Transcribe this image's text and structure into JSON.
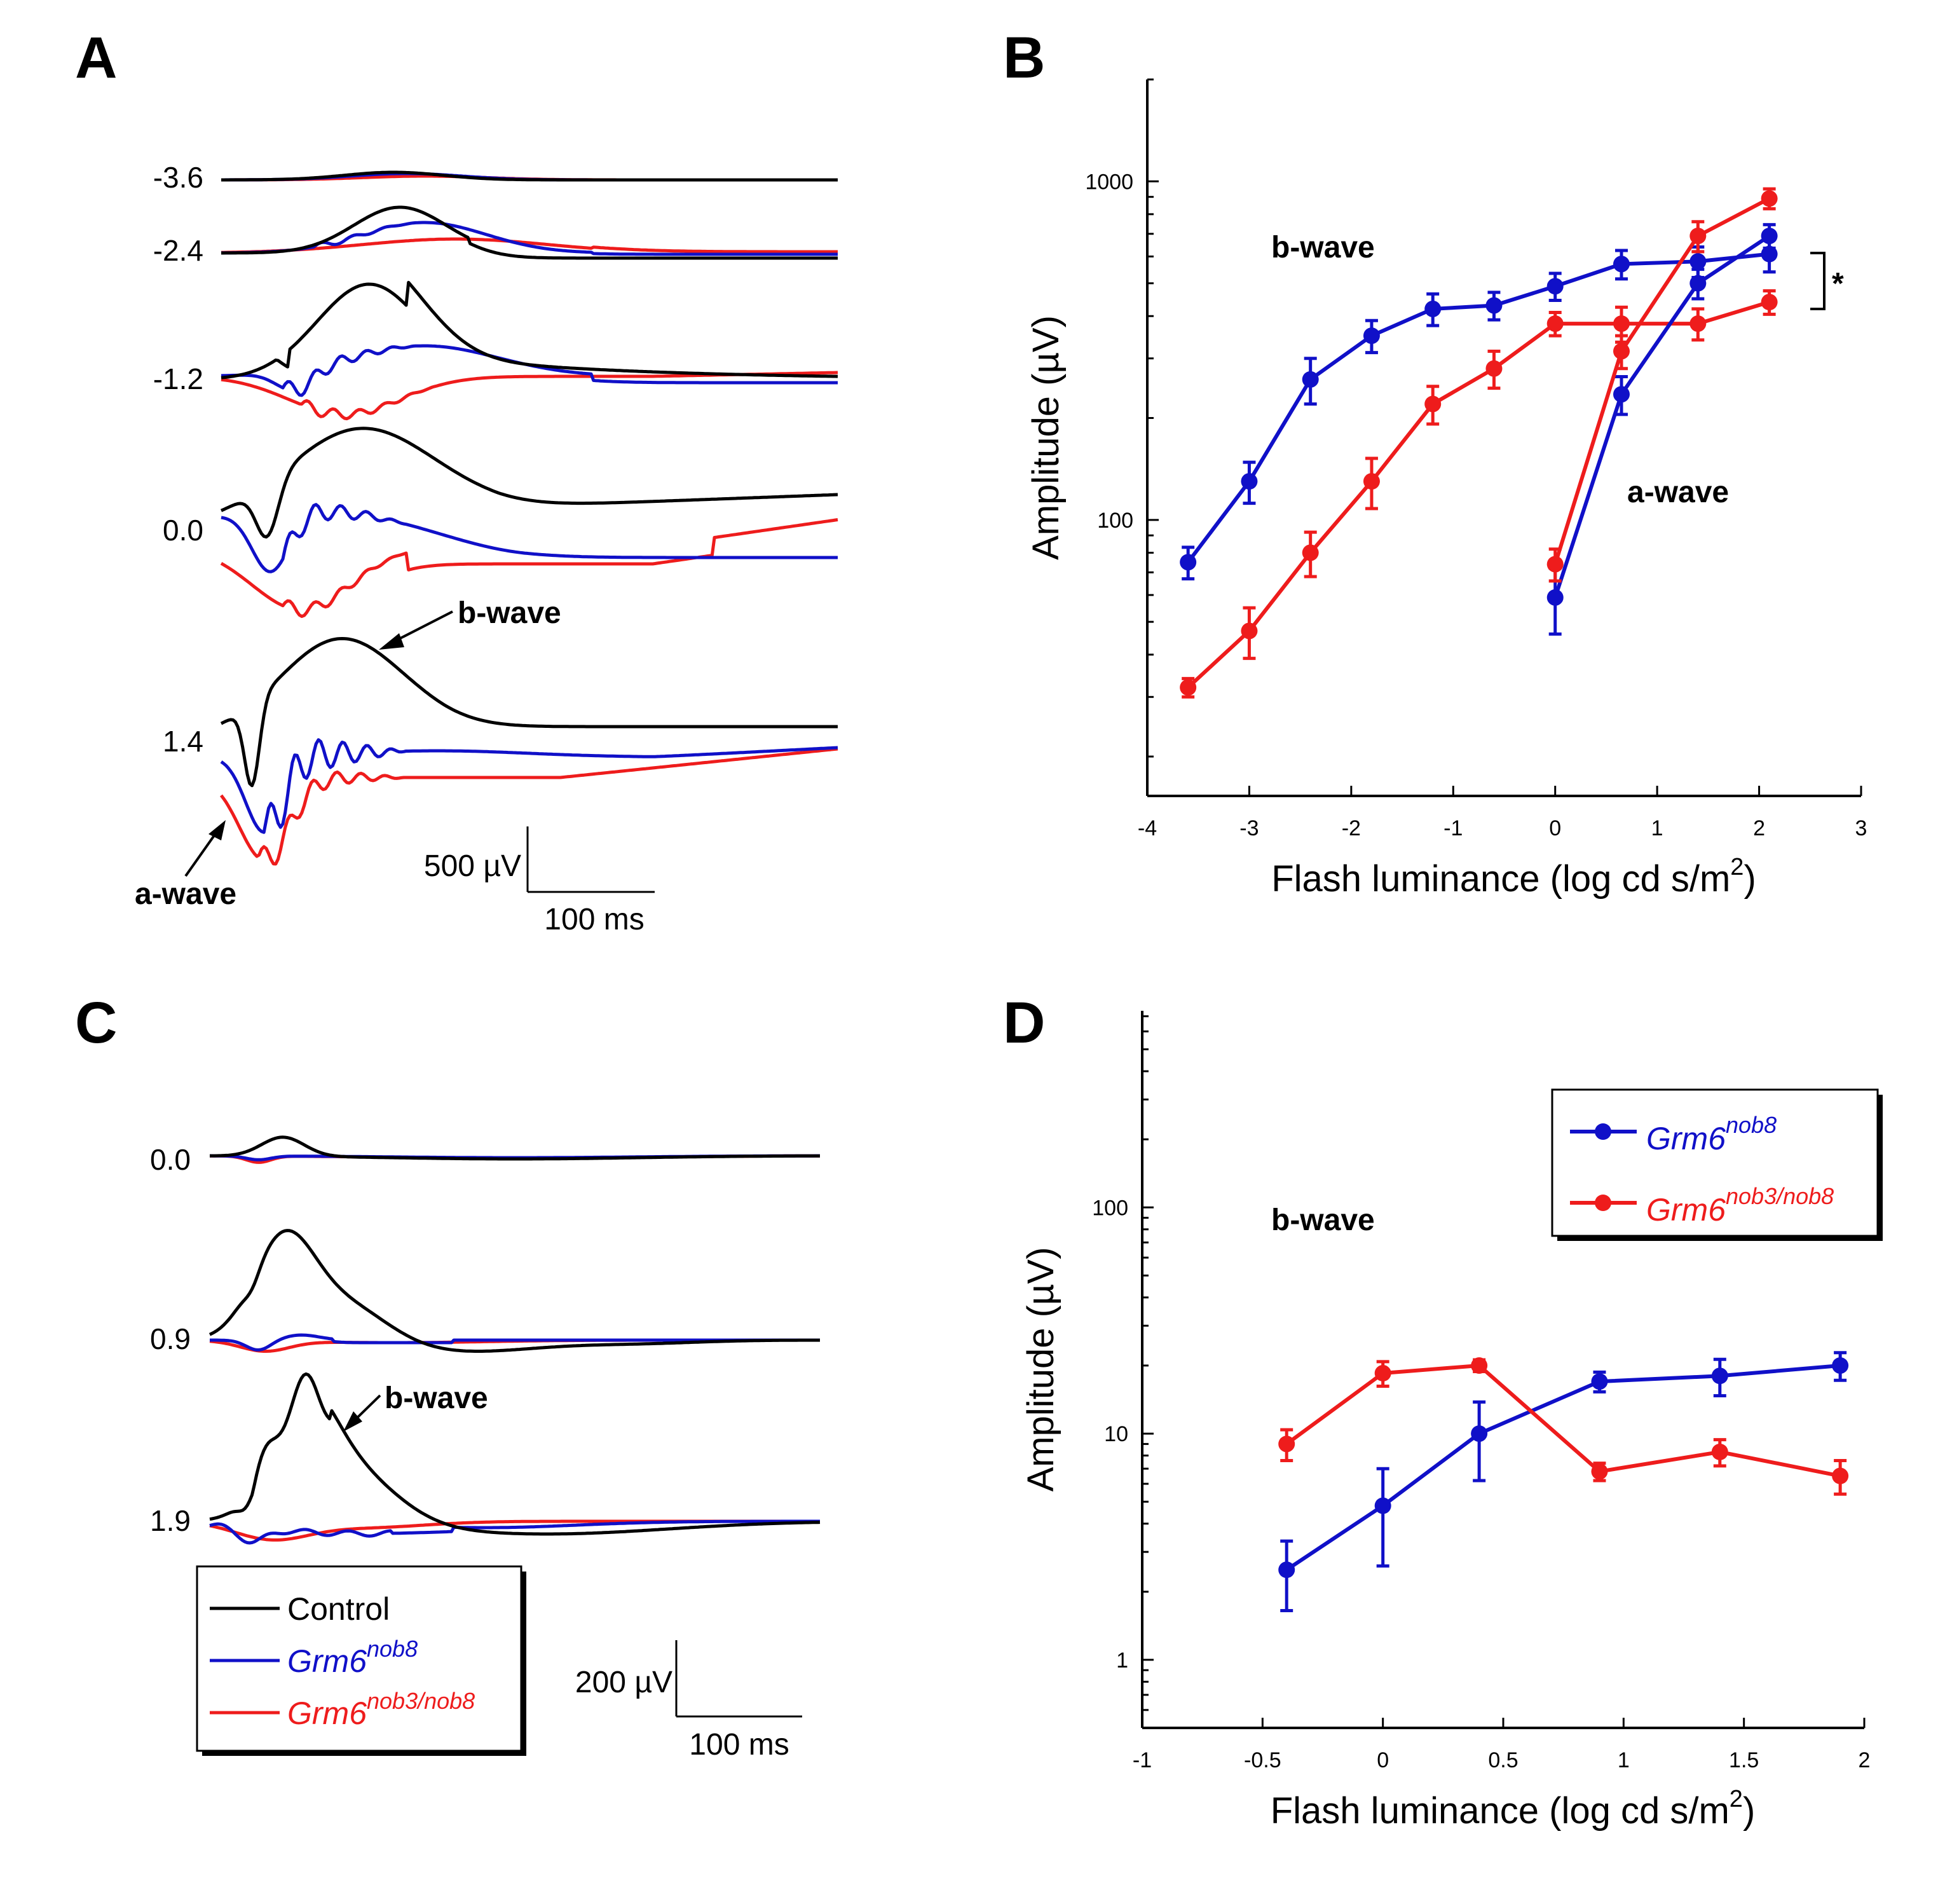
{
  "colors": {
    "control": "#000000",
    "nob8": "#1010c8",
    "nob3nob8": "#ee1c1c"
  },
  "panels": {
    "A": {
      "letter": "A",
      "luminance_labels": [
        "-3.6",
        "-2.4",
        "-1.2",
        "0.0",
        "1.4"
      ],
      "annotations": {
        "bwave": "b-wave",
        "awave": "a-wave"
      },
      "scalebar": {
        "amplitude": "500 µV",
        "time": "100 ms"
      }
    },
    "B": {
      "letter": "B"
    },
    "C": {
      "letter": "C",
      "luminance_labels": [
        "0.0",
        "0.9",
        "1.9"
      ],
      "annotations": {
        "bwave": "b-wave"
      },
      "scalebar": {
        "amplitude": "200 µV",
        "time": "100 ms"
      },
      "legend": [
        {
          "key": "control",
          "base": "Control",
          "sup": ""
        },
        {
          "key": "nob8",
          "base": "Grm6",
          "sup": "nob8"
        },
        {
          "key": "nob3nob8",
          "base": "Grm6",
          "sup": "nob3/nob8"
        }
      ]
    },
    "D": {
      "letter": "D"
    }
  },
  "chart_data": [
    {
      "panel": "B",
      "type": "line",
      "xlabel": "Flash luminance (log cd s/m2)",
      "ylabel": "Amplitude (µV)",
      "xlim": [
        -4,
        3
      ],
      "xticks": [
        -4,
        -3,
        -2,
        -1,
        0,
        1,
        2,
        3
      ],
      "yscale": "log",
      "ylim": [
        15.3,
        2000
      ],
      "yticks": [
        100,
        1000
      ],
      "annotations": [
        "b-wave",
        "a-wave",
        "*"
      ],
      "series": [
        {
          "name": "Grm6 nob8 b-wave",
          "color_key": "nob8",
          "x": [
            -3.6,
            -3.0,
            -2.4,
            -1.8,
            -1.2,
            -0.6,
            0.0,
            0.65,
            1.4,
            2.1
          ],
          "y": [
            75,
            130,
            260,
            350,
            420,
            430,
            490,
            570,
            580,
            610
          ],
          "err": [
            8,
            18,
            40,
            38,
            45,
            40,
            45,
            55,
            60,
            70
          ]
        },
        {
          "name": "Grm6 nob3/nob8 b-wave",
          "color_key": "nob3nob8",
          "x": [
            -3.6,
            -3.0,
            -2.4,
            -1.8,
            -1.2,
            -0.6,
            0.0,
            0.65,
            1.4,
            2.1
          ],
          "y": [
            32,
            47,
            80,
            130,
            220,
            280,
            380,
            380,
            380,
            440
          ],
          "err": [
            2,
            8,
            12,
            22,
            28,
            35,
            30,
            45,
            40,
            35
          ]
        },
        {
          "name": "Grm6 nob8 a-wave",
          "color_key": "nob8",
          "x": [
            0.0,
            0.65,
            1.4,
            2.1
          ],
          "y": [
            59,
            235,
            500,
            690
          ],
          "err": [
            13,
            30,
            50,
            55
          ]
        },
        {
          "name": "Grm6 nob3/nob8 a-wave",
          "color_key": "nob3nob8",
          "x": [
            0.0,
            0.65,
            1.4,
            2.1
          ],
          "y": [
            74,
            315,
            690,
            890
          ],
          "err": [
            8,
            35,
            70,
            60
          ]
        }
      ]
    },
    {
      "panel": "D",
      "type": "line",
      "xlabel": "Flash luminance (log cd s/m2)",
      "ylabel": "Amplitude (µV)",
      "xlim": [
        -1,
        2
      ],
      "xticks": [
        -1,
        -0.5,
        0,
        0.5,
        1,
        1.5,
        2
      ],
      "yscale": "log",
      "ylim": [
        0.5,
        740
      ],
      "yticks": [
        1,
        10,
        100
      ],
      "annotations": [
        "b-wave"
      ],
      "legend_position": "top-right",
      "series": [
        {
          "name": "Grm6 nob8",
          "color_key": "nob8",
          "x": [
            -0.4,
            0.0,
            0.4,
            0.9,
            1.4,
            1.9
          ],
          "y": [
            2.5,
            4.8,
            10,
            17,
            18,
            20
          ],
          "err": [
            0.85,
            2.2,
            3.8,
            1.7,
            3.3,
            2.8
          ]
        },
        {
          "name": "Grm6 nob3/nob8",
          "color_key": "nob3nob8",
          "x": [
            -0.4,
            0.0,
            0.4,
            0.9,
            1.4,
            1.9
          ],
          "y": [
            9,
            18.5,
            20,
            6.8,
            8.3,
            6.5
          ],
          "err": [
            1.4,
            2.3,
            1.2,
            0.6,
            1.1,
            1.1
          ]
        }
      ],
      "legend": [
        {
          "key": "nob8",
          "base": "Grm6",
          "sup": "nob8"
        },
        {
          "key": "nob3nob8",
          "base": "Grm6",
          "sup": "nob3/nob8"
        }
      ]
    }
  ],
  "axis_text": {
    "ylabel": "Amplitude (µV)",
    "xlabel_main": "Flash luminance (log cd s/m",
    "xlabel_sup": "2",
    "xlabel_end": ")",
    "bwave": "b-wave",
    "awave": "a-wave",
    "star": "*"
  }
}
